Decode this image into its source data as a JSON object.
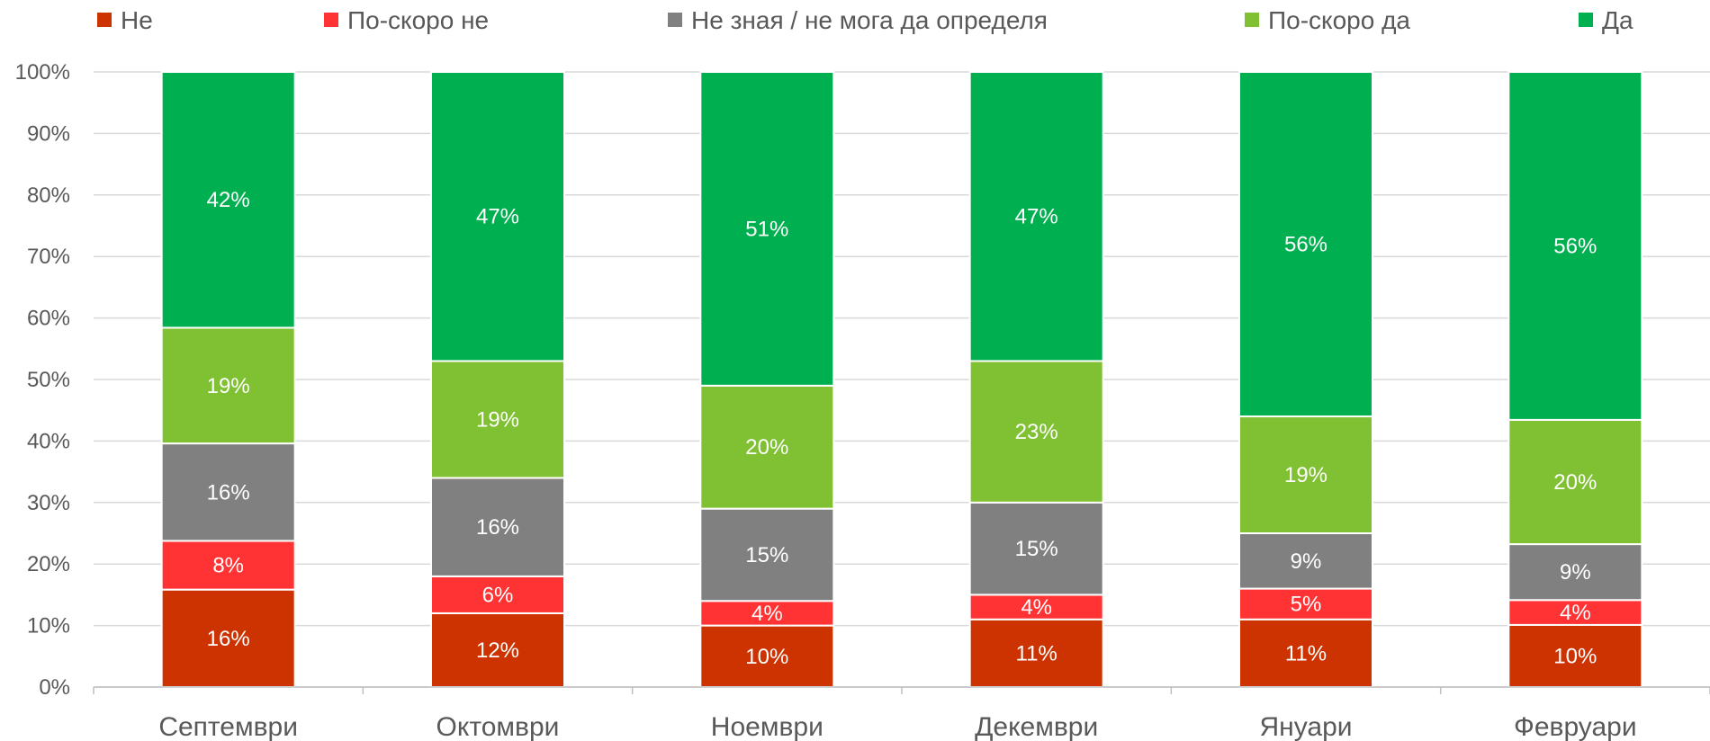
{
  "chart_data": {
    "type": "bar",
    "stacked": true,
    "normalized": true,
    "title": "",
    "xlabel": "",
    "ylabel": "",
    "ylim": [
      0,
      100
    ],
    "yticks": [
      "0%",
      "10%",
      "20%",
      "30%",
      "40%",
      "50%",
      "60%",
      "70%",
      "80%",
      "90%",
      "100%"
    ],
    "grid": true,
    "legend_position": "top",
    "categories": [
      "Септември",
      "Октомври",
      "Ноември",
      "Декември",
      "Януари",
      "Февруари"
    ],
    "series": [
      {
        "name": "Не",
        "color": "#cc3300",
        "values": [
          16,
          12,
          10,
          11,
          11,
          10
        ]
      },
      {
        "name": "По-скоро не",
        "color": "#ff3333",
        "values": [
          8,
          6,
          4,
          4,
          5,
          4
        ]
      },
      {
        "name": "Не зная / не мога да определя",
        "color": "#808080",
        "values": [
          16,
          16,
          15,
          15,
          9,
          9
        ]
      },
      {
        "name": "По-скоро да",
        "color": "#80c133",
        "values": [
          19,
          19,
          20,
          23,
          19,
          20
        ]
      },
      {
        "name": "Да",
        "color": "#00b050",
        "values": [
          42,
          47,
          51,
          47,
          56,
          56
        ]
      }
    ],
    "data_labels": [
      [
        "16%",
        "12%",
        "10%",
        "11%",
        "11%",
        "10%"
      ],
      [
        "8%",
        "6%",
        "4%",
        "4%",
        "5%",
        "4%"
      ],
      [
        "16%",
        "16%",
        "15%",
        "15%",
        "9%",
        "9%"
      ],
      [
        "19%",
        "19%",
        "20%",
        "23%",
        "19%",
        "20%"
      ],
      [
        "42%",
        "47%",
        "51%",
        "47%",
        "56%",
        "56%"
      ]
    ]
  }
}
